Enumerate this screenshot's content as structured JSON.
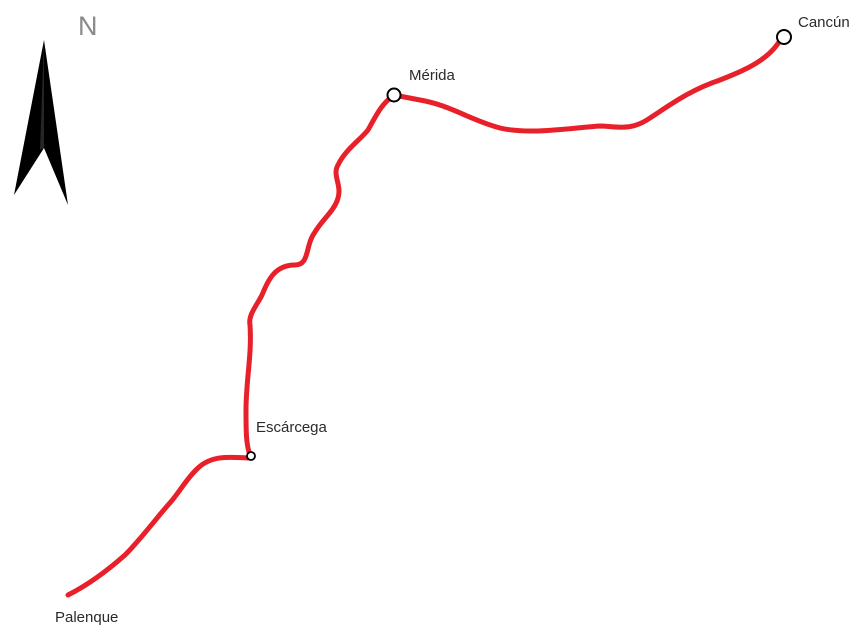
{
  "map": {
    "north_label": "N",
    "route_color": "#e8202a",
    "marker_fill": "#ffffff",
    "marker_stroke": "#000000",
    "north_arrow_color": "#000000",
    "cities": {
      "cancun": "Cancún",
      "merida": "Mérida",
      "escarcega": "Escárcega",
      "palenque": "Palenque"
    }
  }
}
